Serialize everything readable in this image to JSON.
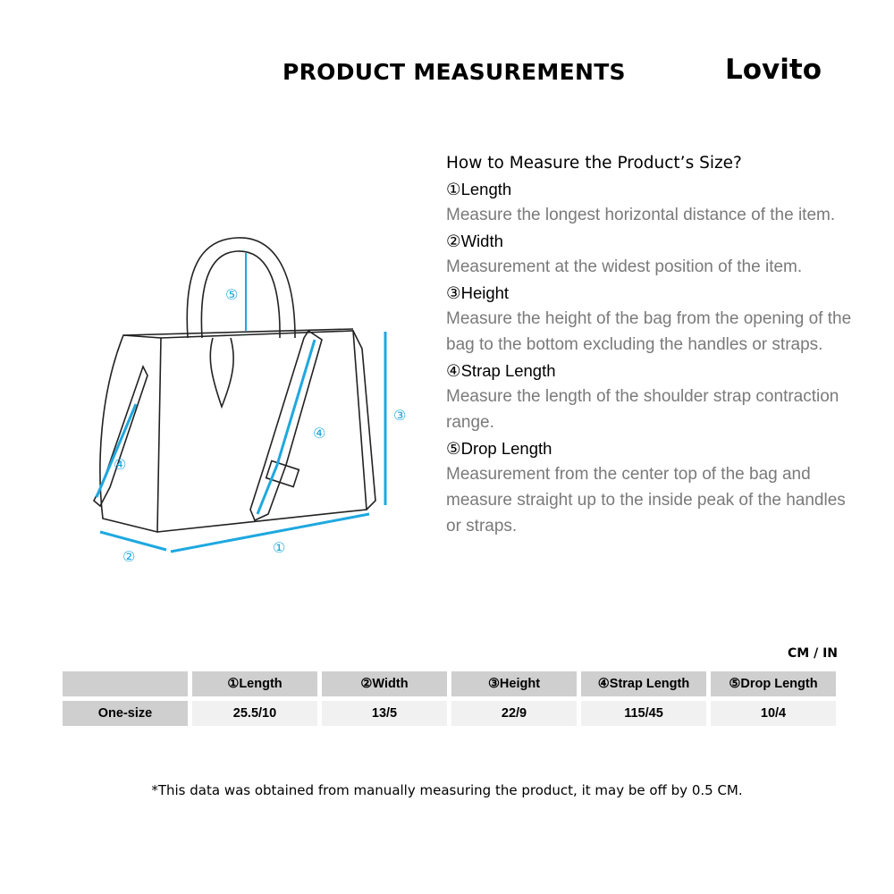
{
  "header": {
    "title": "PRODUCT MEASUREMENTS",
    "brand": "Lovito"
  },
  "guide": {
    "heading": "How to Measure the Product’s Size?",
    "items": [
      {
        "label": "①Length",
        "desc": "Measure the longest horizontal distance of the item."
      },
      {
        "label": "②Width",
        "desc": "Measurement at the widest position of the item."
      },
      {
        "label": "③Height",
        "desc": "Measure the height of the bag from the opening of the bag to the bottom excluding the handles or straps."
      },
      {
        "label": "④Strap Length",
        "desc": "Measure the length of the shoulder strap contraction range."
      },
      {
        "label": "⑤Drop Length",
        "desc": "Measurement from the center top of the bag and measure straight up to the inside peak of the handles or straps."
      }
    ]
  },
  "diagram": {
    "markers": [
      "①",
      "②",
      "③",
      "④",
      "⑤"
    ],
    "accent": "#1ea8e0"
  },
  "table": {
    "units": "CM / IN",
    "headers": [
      "",
      "①Length",
      "②Width",
      "③Height",
      "④Strap Length",
      "⑤Drop Length"
    ],
    "rows": [
      [
        "One-size",
        "25.5/10",
        "13/5",
        "22/9",
        "115/45",
        "10/4"
      ]
    ]
  },
  "footnote": "*This data was obtained from manually measuring the product, it may be off by 0.5 CM."
}
